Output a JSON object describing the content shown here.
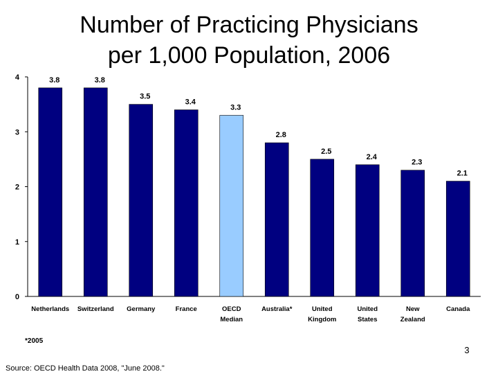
{
  "slide": {
    "title_line1": "Number of Practicing Physicians",
    "title_line2": "per 1,000 Population, 2006",
    "footnote": "*2005",
    "page_number": "3",
    "source": "Source: OECD Health Data 2008, \"June 2008.\""
  },
  "chart_data": {
    "type": "bar",
    "title": "Number of Practicing Physicians per 1,000 Population, 2006",
    "xlabel": "",
    "ylabel": "",
    "ylim": [
      0,
      4
    ],
    "yticks": [
      "0",
      "1",
      "2",
      "3",
      "4"
    ],
    "grid": false,
    "categories": [
      [
        "Netherlands"
      ],
      [
        "Switzerland"
      ],
      [
        "Germany"
      ],
      [
        "France"
      ],
      [
        "OECD",
        "Median"
      ],
      [
        "Australia*"
      ],
      [
        "United",
        "Kingdom"
      ],
      [
        "United",
        "States"
      ],
      [
        "New",
        "Zealand"
      ],
      [
        "Canada"
      ]
    ],
    "values": [
      3.8,
      3.8,
      3.5,
      3.4,
      3.3,
      2.8,
      2.5,
      2.4,
      2.3,
      2.1
    ],
    "value_labels": [
      "3.8",
      "3.8",
      "3.5",
      "3.4",
      "3.3",
      "2.8",
      "2.5",
      "2.4",
      "2.3",
      "2.1"
    ],
    "colors": {
      "bar": "#000080",
      "highlight": "#99CCFF",
      "axis": "#000000"
    },
    "highlight_index": 4
  }
}
